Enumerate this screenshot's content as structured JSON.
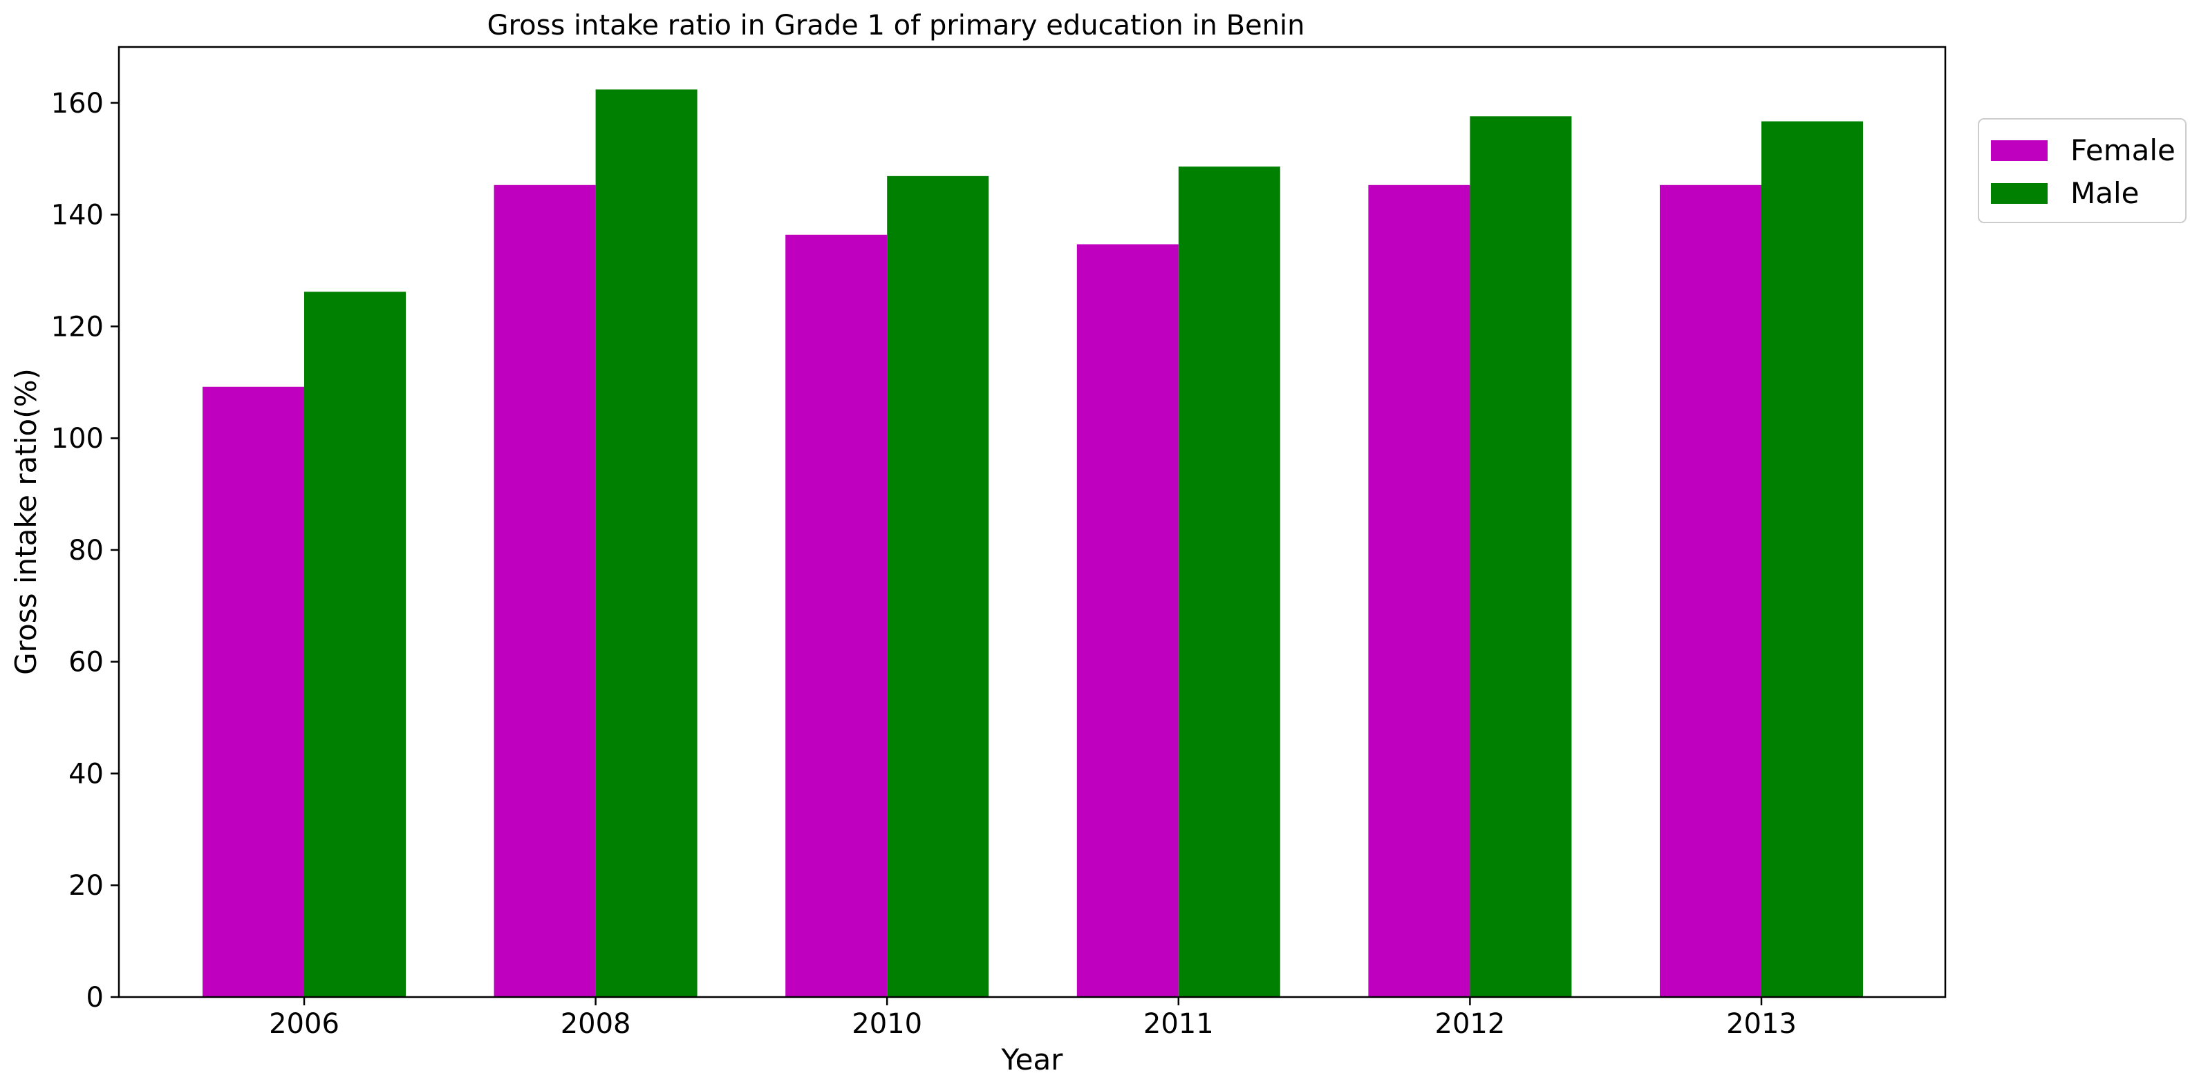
{
  "chart_data": {
    "type": "bar",
    "title": "Gross intake ratio in Grade 1 of primary education in Benin",
    "xlabel": "Year",
    "ylabel": "Gross intake ratio(%)",
    "categories": [
      "2006",
      "2008",
      "2010",
      "2011",
      "2012",
      "2013"
    ],
    "series": [
      {
        "name": "Female",
        "color": "#bf00bf",
        "values": [
          109.2,
          145.3,
          136.4,
          134.7,
          145.3,
          145.3
        ]
      },
      {
        "name": "Male",
        "color": "#008000",
        "values": [
          126.2,
          162.4,
          146.9,
          148.6,
          157.6,
          156.7
        ]
      }
    ],
    "ylim": [
      0,
      170
    ],
    "yticks": [
      0,
      20,
      40,
      60,
      80,
      100,
      120,
      140,
      160
    ],
    "grid": false,
    "legend": "upper right, outside plot"
  }
}
